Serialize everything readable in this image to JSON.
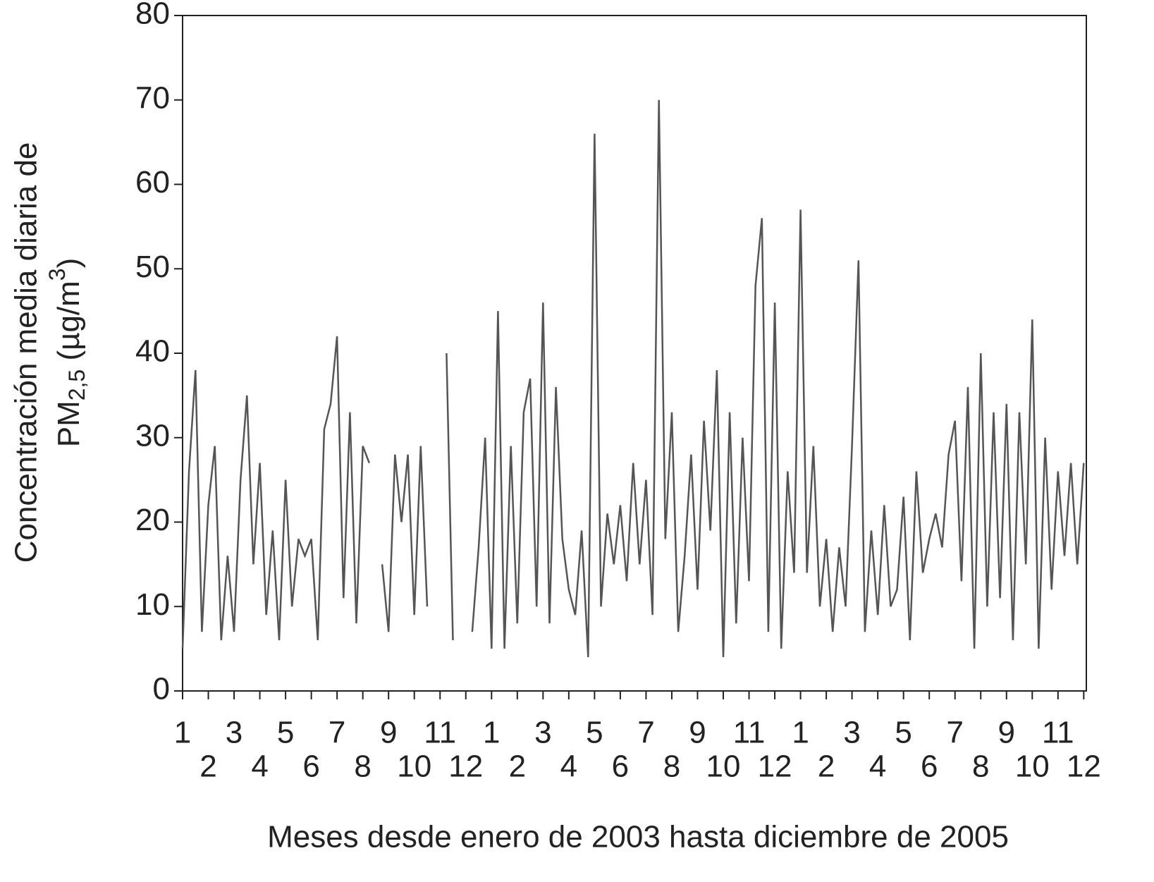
{
  "chart_data": {
    "type": "line",
    "x_label": "Meses desde enero de 2003 hasta diciembre de 2005",
    "y_label": {
      "line1": "Concentración media diaria de",
      "line2": [
        "PM",
        "2,5",
        " (µg/m",
        "3",
        ")"
      ]
    },
    "x": [
      1,
      1.25,
      1.5,
      1.75,
      2,
      2.25,
      2.5,
      2.75,
      3,
      3.25,
      3.5,
      3.75,
      4,
      4.25,
      4.5,
      4.75,
      5,
      5.25,
      5.5,
      5.75,
      6,
      6.25,
      6.5,
      6.75,
      7,
      7.25,
      7.5,
      7.75,
      8,
      8.25,
      8.5,
      8.75,
      9,
      9.25,
      9.5,
      9.75,
      10,
      10.25,
      10.5,
      10.75,
      11.25,
      11.5,
      11.75,
      12.25,
      12.5,
      12.75,
      13,
      13.25,
      13.5,
      13.75,
      14,
      14.25,
      14.5,
      14.75,
      15,
      15.25,
      15.5,
      15.75,
      16,
      16.25,
      16.5,
      16.75,
      17,
      17.25,
      17.5,
      17.75,
      18,
      18.25,
      18.5,
      18.75,
      19,
      19.25,
      19.5,
      19.75,
      20,
      20.25,
      20.5,
      20.75,
      21,
      21.25,
      21.5,
      21.75,
      22,
      22.25,
      22.5,
      22.75,
      23,
      23.25,
      23.5,
      23.75,
      24,
      24.25,
      24.5,
      24.75,
      25,
      25.25,
      25.5,
      25.75,
      26,
      26.25,
      26.5,
      26.75,
      27,
      27.25,
      27.5,
      27.75,
      28,
      28.25,
      28.5,
      28.75,
      29,
      29.25,
      29.5,
      29.75,
      30,
      30.25,
      30.5,
      30.75,
      31,
      31.25,
      31.5,
      31.75,
      32,
      32.25,
      32.5,
      32.75,
      33,
      33.25,
      33.5,
      33.75,
      34,
      34.25,
      34.5,
      34.75,
      35,
      35.25,
      35.5,
      35.75,
      36
    ],
    "series": [
      {
        "name": "PM2,5",
        "color": "#555555",
        "values": [
          5,
          26,
          38,
          7,
          22,
          29,
          6,
          16,
          7,
          25,
          35,
          15,
          27,
          9,
          19,
          6,
          25,
          10,
          18,
          16,
          18,
          6,
          31,
          34,
          42,
          11,
          33,
          8,
          29,
          27,
          null,
          15,
          7,
          28,
          20,
          28,
          9,
          29,
          10,
          null,
          40,
          6,
          null,
          7,
          17,
          30,
          5,
          45,
          5,
          29,
          8,
          33,
          37,
          10,
          46,
          8,
          36,
          18,
          12,
          9,
          19,
          4,
          66,
          10,
          21,
          15,
          22,
          13,
          27,
          15,
          25,
          9,
          70,
          18,
          33,
          7,
          16,
          28,
          12,
          32,
          19,
          38,
          4,
          33,
          8,
          30,
          13,
          48,
          56,
          7,
          46,
          5,
          26,
          14,
          57,
          14,
          29,
          10,
          18,
          7,
          17,
          10,
          29,
          51,
          7,
          19,
          9,
          22,
          10,
          12,
          23,
          6,
          26,
          14,
          18,
          21,
          17,
          28,
          32,
          13,
          36,
          5,
          40,
          10,
          33,
          11,
          34,
          6,
          33,
          15,
          44,
          5,
          30,
          12,
          26,
          16,
          27,
          15,
          27
        ]
      }
    ],
    "xlim": [
      1,
      36.1
    ],
    "xticks": [
      1,
      2,
      3,
      4,
      5,
      6,
      7,
      8,
      9,
      10,
      11,
      12,
      {
        "value": 13,
        "label": "1"
      },
      {
        "value": 14,
        "label": "2"
      },
      {
        "value": 15,
        "label": "3"
      },
      {
        "value": 16,
        "label": "4"
      },
      {
        "value": 17,
        "label": "5"
      },
      {
        "value": 18,
        "label": "6"
      },
      {
        "value": 19,
        "label": "7"
      },
      {
        "value": 20,
        "label": "8"
      },
      {
        "value": 21,
        "label": "9"
      },
      {
        "value": 22,
        "label": "10"
      },
      {
        "value": 23,
        "label": "11"
      },
      {
        "value": 24,
        "label": "12"
      },
      {
        "value": 25,
        "label": "1"
      },
      {
        "value": 26,
        "label": "2"
      },
      {
        "value": 27,
        "label": "3"
      },
      {
        "value": 28,
        "label": "4"
      },
      {
        "value": 29,
        "label": "5"
      },
      {
        "value": 30,
        "label": "6"
      },
      {
        "value": 31,
        "label": "7"
      },
      {
        "value": 32,
        "label": "8"
      },
      {
        "value": 33,
        "label": "9"
      },
      {
        "value": 34,
        "label": "10"
      },
      {
        "value": 35,
        "label": "11"
      },
      {
        "value": 36,
        "label": "12"
      }
    ],
    "ylim": [
      0,
      80
    ],
    "yticks": [
      0,
      10,
      20,
      30,
      40,
      50,
      60,
      70,
      80
    ],
    "grid": false
  }
}
